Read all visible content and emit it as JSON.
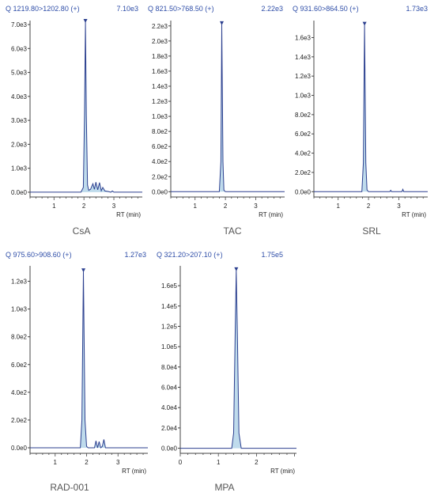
{
  "colors": {
    "header_text": "#2f4ea8",
    "trace": "#2b3f8f",
    "fill": "#a9cfe6",
    "axis": "#444444",
    "tick_text": "#222222",
    "compound_label": "#555555"
  },
  "chart_data": [
    {
      "type": "line",
      "header_left": "Q 1219.80>1202.80 (+)",
      "header_right": "7.10e3",
      "compound": "CsA",
      "xlabel": "RT (min)",
      "xlim": [
        0.2,
        3.95
      ],
      "xticks": [
        "1",
        "2",
        "3"
      ],
      "ylim": [
        -200,
        7100
      ],
      "yticks": [
        "0.0e0",
        "1.0e3",
        "2.0e3",
        "3.0e3",
        "4.0e3",
        "5.0e3",
        "6.0e3",
        "7.0e3"
      ],
      "apex_marker": true,
      "series": [
        {
          "x": [
            0.2,
            1.9,
            1.98,
            2.02,
            2.05,
            2.08,
            2.12,
            2.16,
            2.22,
            2.3,
            2.35,
            2.4,
            2.46,
            2.52,
            2.58,
            2.63,
            2.7,
            2.8,
            2.9,
            2.95,
            3.0,
            3.1,
            3.95
          ],
          "y": [
            0,
            0,
            200,
            3200,
            7100,
            3200,
            300,
            80,
            120,
            350,
            120,
            420,
            100,
            400,
            60,
            200,
            50,
            30,
            0,
            50,
            0,
            0,
            0
          ],
          "fill": true
        }
      ]
    },
    {
      "type": "line",
      "header_left": "Q 821.50>768.50 (+)",
      "header_right": "2.22e3",
      "compound": "TAC",
      "xlabel": "RT (min)",
      "xlim": [
        0.2,
        3.95
      ],
      "xticks": [
        "1",
        "2",
        "3"
      ],
      "ylim": [
        -70,
        2250
      ],
      "yticks": [
        "0.0e0",
        "2.0e2",
        "4.0e2",
        "6.0e2",
        "8.0e2",
        "1.0e3",
        "1.2e3",
        "1.4e3",
        "1.6e3",
        "1.8e3",
        "2.0e3",
        "2.2e3"
      ],
      "apex_marker": true,
      "series": [
        {
          "x": [
            0.2,
            1.8,
            1.85,
            1.88,
            1.92,
            1.95,
            2.0,
            3.95
          ],
          "y": [
            0,
            0,
            400,
            2220,
            400,
            20,
            0,
            0
          ],
          "fill": true
        }
      ]
    },
    {
      "type": "line",
      "header_left": "Q 931.60>864.50 (+)",
      "header_right": "1.73e3",
      "compound": "SRL",
      "xlabel": "RT (min)",
      "xlim": [
        0.2,
        3.95
      ],
      "xticks": [
        "1",
        "2",
        "3"
      ],
      "ylim": [
        -55,
        1760
      ],
      "yticks": [
        "0.0e0",
        "2.0e2",
        "4.0e2",
        "6.0e2",
        "8.0e2",
        "1.0e3",
        "1.2e3",
        "1.4e3",
        "1.6e3"
      ],
      "apex_marker": true,
      "series": [
        {
          "x": [
            0.2,
            1.78,
            1.83,
            1.87,
            1.91,
            1.95,
            2.0,
            2.7,
            2.73,
            2.76,
            3.1,
            3.13,
            3.16,
            3.95
          ],
          "y": [
            0,
            0,
            300,
            1730,
            300,
            20,
            0,
            0,
            15,
            0,
            0,
            25,
            0,
            0
          ],
          "fill": true
        }
      ]
    },
    {
      "type": "line",
      "header_left": "Q 975.60>908.60 (+)",
      "header_right": "1.27e3",
      "compound": "RAD-001",
      "xlabel": "RT (min)",
      "xlim": [
        0.2,
        3.95
      ],
      "xticks": [
        "1",
        "2",
        "3"
      ],
      "ylim": [
        -40,
        1300
      ],
      "yticks": [
        "0.0e0",
        "2.0e2",
        "4.0e2",
        "6.0e2",
        "8.0e2",
        "1.0e3",
        "1.2e3"
      ],
      "apex_marker": true,
      "series": [
        {
          "x": [
            0.2,
            1.8,
            1.85,
            1.9,
            1.95,
            2.0,
            2.05,
            2.25,
            2.3,
            2.35,
            2.4,
            2.45,
            2.5,
            2.55,
            2.6,
            2.65,
            3.95
          ],
          "y": [
            0,
            0,
            200,
            1270,
            200,
            10,
            0,
            0,
            50,
            0,
            45,
            0,
            10,
            60,
            0,
            0,
            0
          ],
          "fill": true
        }
      ]
    },
    {
      "type": "line",
      "header_left": "Q 321.20>207.10 (+)",
      "header_right": "1.75e5",
      "compound": "MPA",
      "xlabel": "RT (min)",
      "xlim": [
        0,
        3.05
      ],
      "xticks": [
        "0",
        "1",
        "2"
      ],
      "ylim": [
        -5000,
        178000.0
      ],
      "yticks": [
        "0.0e0",
        "2.0e4",
        "4.0e4",
        "6.0e4",
        "8.0e4",
        "1.0e5",
        "1.2e5",
        "1.4e5",
        "1.6e5"
      ],
      "apex_marker": true,
      "series": [
        {
          "x": [
            0,
            1.35,
            1.4,
            1.44,
            1.47,
            1.5,
            1.54,
            1.6,
            3.05
          ],
          "y": [
            0,
            0,
            15000,
            110000,
            175000,
            110000,
            15000,
            0,
            0
          ],
          "fill": true
        }
      ]
    }
  ]
}
